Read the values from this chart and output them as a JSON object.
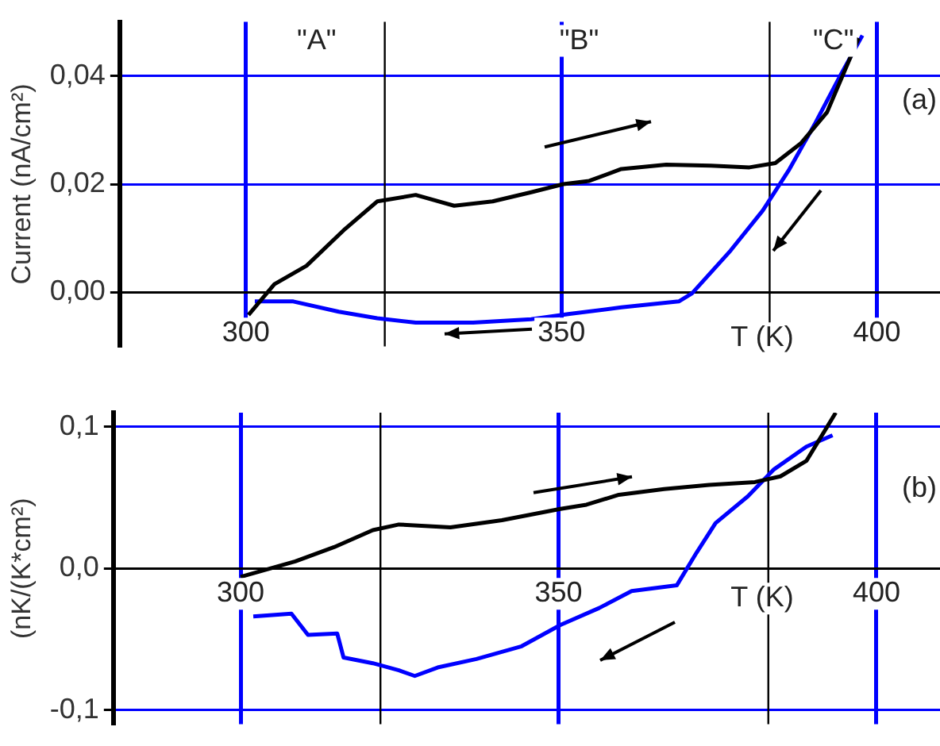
{
  "chart_data": [
    {
      "type": "line",
      "ylabel": "Current (nA/cm²)",
      "xlabel": "T (K)",
      "xlim": [
        280,
        410
      ],
      "xticks": [
        300,
        350,
        400
      ],
      "ylim": [
        -0.01,
        0.05
      ],
      "yticks": [
        {
          "value": 0,
          "label": "0,00"
        },
        {
          "value": 0.02,
          "label": "0,02"
        },
        {
          "value": 0.04,
          "label": "0,04"
        }
      ],
      "grid": true,
      "marker": "none",
      "line_style": "solid",
      "ref_lines": [
        {
          "axis": "x",
          "value": 322,
          "color": "#000000"
        },
        {
          "axis": "x",
          "value": 383,
          "color": "#000000"
        }
      ],
      "annotations": [
        "\"A\"",
        "\"B\"",
        "\"C\"",
        "(a)"
      ],
      "series": [
        {
          "color": "#000000",
          "x": [
            300.4,
            304.5,
            309.6,
            315.7,
            320.8,
            326.9,
            333,
            339.1,
            345.2,
            350.3,
            354.4,
            359.5,
            366.6,
            373.7,
            379.8,
            383.9,
            388,
            392.1,
            397.1
          ],
          "values": [
            -0.0042,
            0.0015,
            0.0049,
            0.0117,
            0.0168,
            0.018,
            0.016,
            0.0168,
            0.0185,
            0.02,
            0.0206,
            0.0228,
            0.0236,
            0.0234,
            0.0231,
            0.0239,
            0.0276,
            0.0333,
            0.047
          ]
        },
        {
          "color": "#0000ff",
          "x": [
            301.4,
            307.5,
            314.7,
            320.8,
            326.9,
            336,
            345.2,
            351.3,
            359.5,
            368.6,
            370.7,
            376.8,
            381.9,
            386,
            390.1,
            394.2,
            397.7
          ],
          "values": [
            -0.0017,
            -0.0017,
            -0.0036,
            -0.0048,
            -0.0056,
            -0.0056,
            -0.005,
            -0.004,
            -0.0028,
            -0.0017,
            -0.0002,
            0.0077,
            0.0151,
            0.0225,
            0.031,
            0.0401,
            0.0475
          ]
        }
      ]
    },
    {
      "type": "line",
      "ylabel": "(nK/(K*cm²)",
      "xlabel": "T (K)",
      "xlim": [
        280,
        410
      ],
      "xticks": [
        300,
        350,
        400
      ],
      "ylim": [
        -0.11,
        0.11
      ],
      "yticks": [
        {
          "value": -0.1,
          "label": "-0,1"
        },
        {
          "value": 0,
          "label": "0,0"
        },
        {
          "value": 0.1,
          "label": "0,1"
        }
      ],
      "grid": true,
      "marker": "none",
      "line_style": "solid",
      "ref_lines": [
        {
          "axis": "x",
          "value": 322,
          "color": "#000000"
        },
        {
          "axis": "x",
          "value": 383,
          "color": "#000000"
        }
      ],
      "annotations": [
        "(b)"
      ],
      "series": [
        {
          "color": "#000000",
          "x": [
            300,
            308.6,
            314.7,
            320.8,
            324.9,
            333,
            341.1,
            350.3,
            354.4,
            359.5,
            366.6,
            373.7,
            380.9,
            384.9,
            389,
            393.6
          ],
          "values": [
            -0.006,
            0.005,
            0.015,
            0.027,
            0.031,
            0.029,
            0.034,
            0.042,
            0.045,
            0.052,
            0.056,
            0.059,
            0.061,
            0.065,
            0.076,
            0.11
          ]
        },
        {
          "color": "#0000ff",
          "x": [
            302,
            308,
            310.6,
            315.2,
            316.2,
            320.8,
            324.9,
            327.4,
            331,
            337.1,
            344.2,
            350.3,
            356.4,
            361.5,
            368.6,
            371.7,
            374.7,
            379.8,
            383.9,
            389,
            393.1
          ],
          "values": [
            -0.034,
            -0.032,
            -0.047,
            -0.046,
            -0.063,
            -0.067,
            -0.072,
            -0.076,
            -0.07,
            -0.064,
            -0.055,
            -0.04,
            -0.028,
            -0.016,
            -0.012,
            0.011,
            0.032,
            0.051,
            0.07,
            0.086,
            0.094
          ]
        }
      ]
    }
  ]
}
